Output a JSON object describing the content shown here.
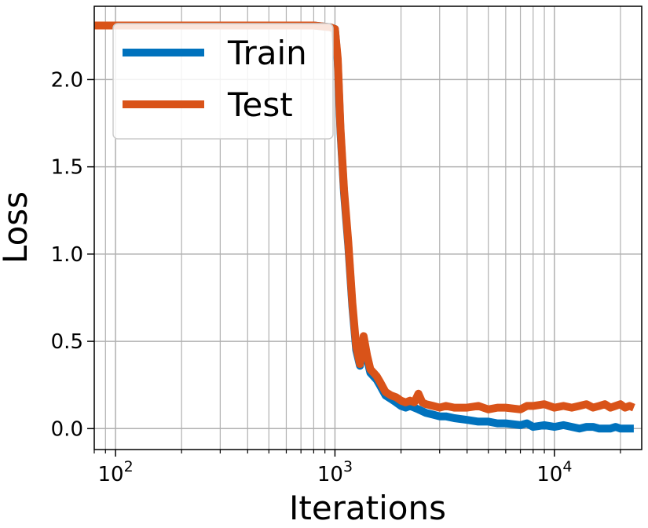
{
  "chart_data": {
    "type": "line",
    "xscale": "log",
    "xlabel": "Iterations",
    "ylabel": "Loss",
    "xlim": [
      80,
      25000
    ],
    "ylim": [
      -0.12,
      2.42
    ],
    "yticks": [
      0.0,
      0.5,
      1.0,
      1.5,
      2.0
    ],
    "ytick_labels": [
      "0.0",
      "0.5",
      "1.0",
      "1.5",
      "2.0"
    ],
    "xticks": [
      {
        "value": 100,
        "base": "10",
        "exp": "2"
      },
      {
        "value": 1000,
        "base": "10",
        "exp": "3"
      },
      {
        "value": 10000,
        "base": "10",
        "exp": "4"
      }
    ],
    "grid": true,
    "legend_position": "top-left",
    "series": [
      {
        "name": "Train",
        "color": "#0072bd",
        "x": [
          80,
          100,
          200,
          400,
          600,
          800,
          950,
          1000,
          1030,
          1060,
          1100,
          1150,
          1200,
          1250,
          1300,
          1350,
          1400,
          1450,
          1500,
          1550,
          1600,
          1700,
          1800,
          1900,
          2000,
          2100,
          2200,
          2300,
          2400,
          2500,
          2600,
          2800,
          3000,
          3200,
          3500,
          4000,
          4500,
          5000,
          5500,
          6000,
          7000,
          7500,
          8000,
          9000,
          10000,
          11000,
          12000,
          13000,
          14000,
          15000,
          16000,
          17000,
          18000,
          19000,
          20000,
          21000,
          22000,
          23000
        ],
        "y": [
          2.31,
          2.31,
          2.31,
          2.31,
          2.31,
          2.31,
          2.3,
          2.29,
          2.1,
          1.7,
          1.35,
          1.05,
          0.7,
          0.45,
          0.36,
          0.5,
          0.4,
          0.32,
          0.3,
          0.28,
          0.25,
          0.19,
          0.17,
          0.15,
          0.13,
          0.12,
          0.13,
          0.12,
          0.11,
          0.1,
          0.09,
          0.08,
          0.07,
          0.07,
          0.06,
          0.05,
          0.04,
          0.04,
          0.03,
          0.03,
          0.02,
          0.03,
          0.01,
          0.02,
          0.01,
          0.02,
          0.01,
          0.0,
          0.01,
          0.01,
          0.0,
          0.0,
          0.0,
          0.01,
          0.0,
          0.0,
          0.0,
          0.0
        ]
      },
      {
        "name": "Test",
        "color": "#d95319",
        "x": [
          80,
          100,
          200,
          400,
          600,
          800,
          950,
          1000,
          1030,
          1060,
          1100,
          1150,
          1200,
          1250,
          1300,
          1350,
          1400,
          1450,
          1500,
          1550,
          1600,
          1700,
          1800,
          1900,
          2000,
          2100,
          2200,
          2300,
          2400,
          2500,
          2600,
          2800,
          3000,
          3200,
          3500,
          4000,
          4500,
          5000,
          5500,
          6000,
          7000,
          7500,
          8000,
          9000,
          10000,
          11000,
          12000,
          13000,
          14000,
          15000,
          16000,
          17000,
          18000,
          19000,
          20000,
          21000,
          22000,
          23000
        ],
        "y": [
          2.31,
          2.31,
          2.31,
          2.31,
          2.31,
          2.31,
          2.3,
          2.29,
          2.12,
          1.72,
          1.37,
          1.07,
          0.72,
          0.47,
          0.37,
          0.53,
          0.42,
          0.34,
          0.32,
          0.3,
          0.27,
          0.21,
          0.19,
          0.18,
          0.16,
          0.15,
          0.16,
          0.15,
          0.2,
          0.15,
          0.14,
          0.13,
          0.12,
          0.13,
          0.12,
          0.12,
          0.13,
          0.11,
          0.12,
          0.12,
          0.11,
          0.13,
          0.13,
          0.14,
          0.12,
          0.13,
          0.12,
          0.13,
          0.14,
          0.12,
          0.13,
          0.14,
          0.12,
          0.13,
          0.14,
          0.12,
          0.13,
          0.12
        ]
      }
    ]
  }
}
